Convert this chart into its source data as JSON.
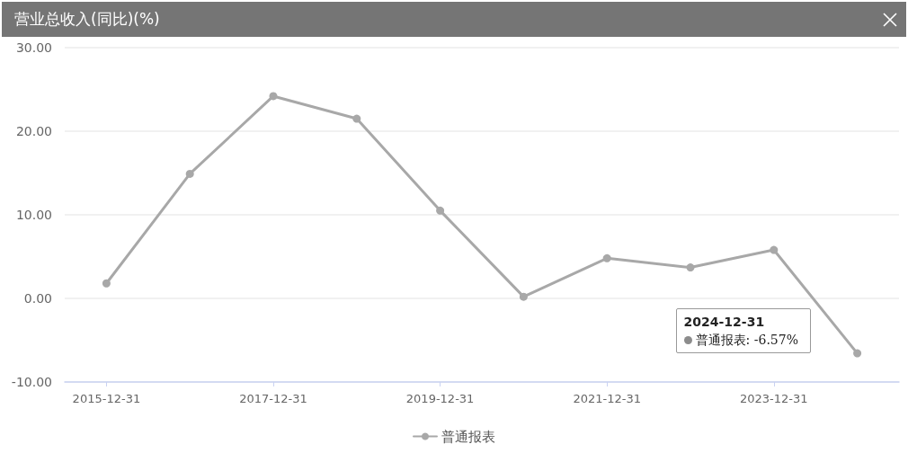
{
  "chart_data": {
    "type": "line",
    "title": "营业总收入(同比)(%)",
    "categories": [
      "2015-12-31",
      null,
      "2017-12-31",
      null,
      "2019-12-31",
      null,
      "2021-12-31",
      null,
      "2023-12-31",
      null
    ],
    "series": [
      {
        "name": "普通报表",
        "color": "#a8a8a8",
        "values": [
          1.8,
          14.9,
          24.2,
          21.5,
          10.5,
          0.2,
          4.8,
          3.7,
          5.8,
          -6.57
        ]
      }
    ],
    "ylim": [
      -10,
      30
    ],
    "yticks": [
      {
        "value": -10,
        "label": "-10.00"
      },
      {
        "value": 0,
        "label": "0.00"
      },
      {
        "value": 10,
        "label": "10.00"
      },
      {
        "value": 20,
        "label": "20.00"
      },
      {
        "value": 30,
        "label": "30.00"
      }
    ],
    "grid": "y",
    "legend": "bottom",
    "marker": "circle",
    "line_style": "solid",
    "annotations": [
      "2024-12-31",
      "普通报表: -6.57%"
    ]
  }
}
